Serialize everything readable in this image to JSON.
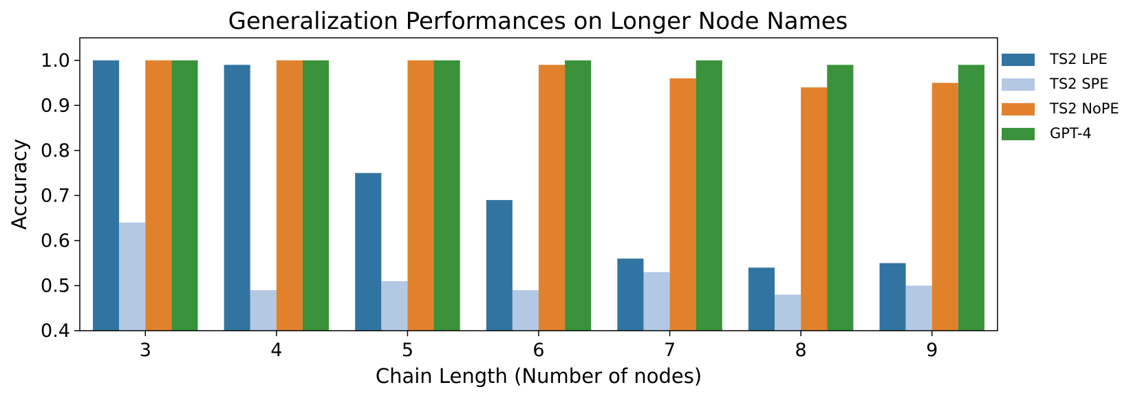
{
  "chart_data": {
    "type": "bar",
    "title": "Generalization Performances on Longer Node Names",
    "xlabel": "Chain Length (Number of nodes)",
    "ylabel": "Accuracy",
    "categories": [
      "3",
      "4",
      "5",
      "6",
      "7",
      "8",
      "9"
    ],
    "series": [
      {
        "name": "TS2 LPE",
        "color": "#3274a1",
        "values": [
          1.0,
          0.99,
          0.75,
          0.69,
          0.56,
          0.54,
          0.55
        ]
      },
      {
        "name": "TS2 SPE",
        "color": "#b3c8e3",
        "values": [
          0.64,
          0.49,
          0.51,
          0.49,
          0.53,
          0.48,
          0.5
        ]
      },
      {
        "name": "TS2 NoPE",
        "color": "#e1812c",
        "values": [
          1.0,
          1.0,
          1.0,
          0.99,
          0.96,
          0.94,
          0.95
        ]
      },
      {
        "name": "GPT-4",
        "color": "#3a923a",
        "values": [
          1.0,
          1.0,
          1.0,
          1.0,
          1.0,
          0.99,
          0.99
        ]
      }
    ],
    "ylim": [
      0.4,
      1.05
    ],
    "yticks": [
      "0.4",
      "0.5",
      "0.6",
      "0.7",
      "0.8",
      "0.9",
      "1.0"
    ],
    "grid": false,
    "legend_position": "right"
  }
}
